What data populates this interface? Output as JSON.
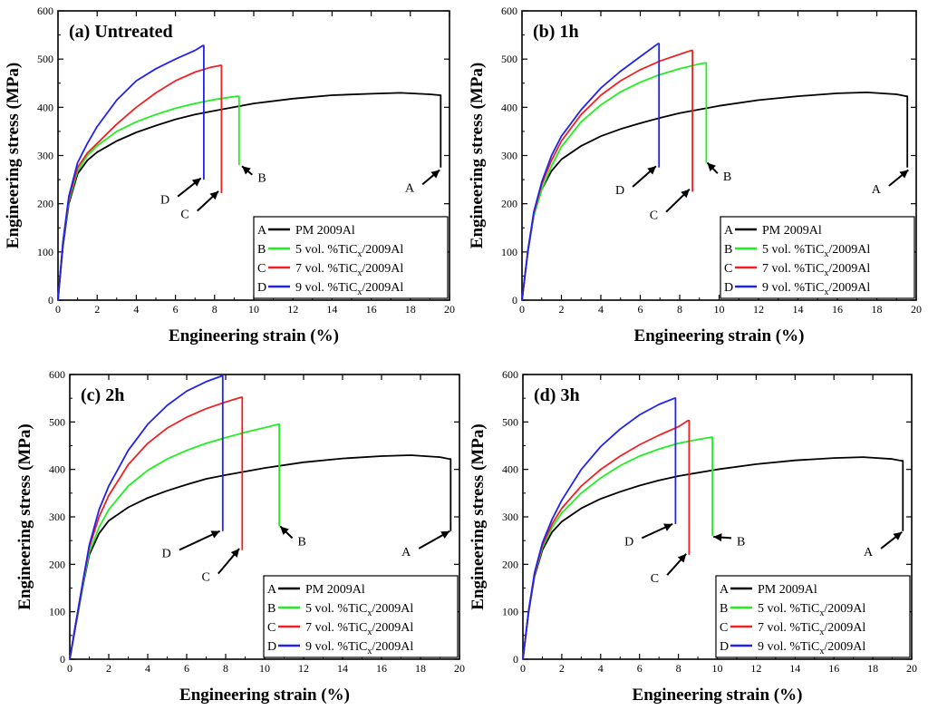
{
  "chart_data": [
    {
      "type": "line",
      "title": "(a) Untreated",
      "xlabel": "Engineering strain (%)",
      "ylabel": "Engineering stress (MPa)",
      "xlim": [
        0,
        20
      ],
      "ylim": [
        0,
        600
      ],
      "xticks": [
        0,
        2,
        4,
        6,
        8,
        10,
        12,
        14,
        16,
        18,
        20
      ],
      "yticks": [
        0,
        100,
        200,
        300,
        400,
        500,
        600
      ],
      "legend": "bottom-right",
      "series": [
        {
          "letter": "A",
          "name": "PM 2009Al",
          "color": "#000000",
          "x": [
            0,
            0.25,
            0.55,
            1.0,
            1.5,
            2.0,
            3,
            4,
            5,
            6,
            7,
            8,
            10,
            12,
            14,
            16,
            17.5,
            19,
            19.5
          ],
          "y": [
            0,
            110,
            200,
            262,
            290,
            307,
            330,
            348,
            362,
            375,
            385,
            393,
            408,
            418,
            425,
            428,
            430,
            427,
            425
          ],
          "fracture": [
            19.55,
            275
          ],
          "callout_point": [
            19.5,
            270
          ],
          "label_pos": [
            18.2,
            225
          ]
        },
        {
          "letter": "B",
          "name": "5 vol. %TiC",
          "sub": "x",
          "suffix": "/2009Al",
          "color": "#22ee22",
          "x": [
            0,
            0.25,
            0.55,
            1.0,
            1.5,
            2.0,
            3,
            4,
            5,
            6,
            7,
            8,
            8.8,
            9.2
          ],
          "y": [
            0,
            115,
            205,
            268,
            300,
            320,
            350,
            370,
            385,
            398,
            408,
            416,
            421,
            423
          ],
          "fracture": [
            9.25,
            280
          ],
          "callout_point": [
            9.4,
            278
          ],
          "label_pos": [
            10.2,
            245
          ]
        },
        {
          "letter": "C",
          "name": "7 vol. %TiC",
          "sub": "x",
          "suffix": "/2009Al",
          "color": "#ee2222",
          "x": [
            0,
            0.25,
            0.55,
            1.0,
            1.5,
            2.0,
            3,
            4,
            5,
            6,
            7,
            7.8,
            8.3
          ],
          "y": [
            0,
            118,
            210,
            275,
            305,
            325,
            365,
            400,
            430,
            455,
            473,
            483,
            487
          ],
          "fracture": [
            8.35,
            222
          ],
          "callout_point": [
            8.2,
            226
          ],
          "label_pos": [
            6.7,
            170
          ]
        },
        {
          "letter": "D",
          "name": "9 vol. %TiC",
          "sub": "x",
          "suffix": "/2009Al",
          "color": "#2222ee",
          "x": [
            0,
            0.25,
            0.55,
            1.0,
            1.5,
            2.0,
            3,
            4,
            5,
            6,
            7,
            7.4
          ],
          "y": [
            0,
            120,
            215,
            285,
            325,
            360,
            415,
            455,
            480,
            500,
            518,
            528
          ],
          "fracture": [
            7.45,
            250
          ],
          "callout_point": [
            7.3,
            253
          ],
          "label_pos": [
            5.7,
            200
          ]
        }
      ]
    },
    {
      "type": "line",
      "title": "(b) 1h",
      "xlabel": "Engineering strain (%)",
      "ylabel": "Engineering stress (MPa)",
      "xlim": [
        0,
        20
      ],
      "ylim": [
        0,
        600
      ],
      "xticks": [
        0,
        2,
        4,
        6,
        8,
        10,
        12,
        14,
        16,
        18,
        20
      ],
      "yticks": [
        0,
        100,
        200,
        300,
        400,
        500,
        600
      ],
      "legend": "bottom-right",
      "series": [
        {
          "letter": "A",
          "name": "PM 2009Al",
          "color": "#000000",
          "x": [
            0,
            0.3,
            0.6,
            1.0,
            1.5,
            2.0,
            3,
            4,
            5,
            6,
            7,
            8,
            10,
            12,
            14,
            16,
            17.5,
            19,
            19.5
          ],
          "y": [
            0,
            100,
            175,
            230,
            268,
            292,
            320,
            340,
            355,
            367,
            378,
            388,
            403,
            415,
            423,
            429,
            431,
            427,
            423
          ],
          "fracture": [
            19.55,
            275
          ],
          "callout_point": [
            19.6,
            270
          ],
          "label_pos": [
            18.2,
            222
          ]
        },
        {
          "letter": "B",
          "name": "5 vol. %TiC",
          "sub": "x",
          "suffix": "/2009Al",
          "color": "#22ee22",
          "x": [
            0,
            0.3,
            0.6,
            1.0,
            1.5,
            2.0,
            3,
            4,
            5,
            6,
            7,
            8,
            9,
            9.3
          ],
          "y": [
            0,
            100,
            175,
            230,
            278,
            318,
            370,
            405,
            432,
            452,
            468,
            480,
            490,
            492
          ],
          "fracture": [
            9.35,
            285
          ],
          "callout_point": [
            9.4,
            285
          ],
          "label_pos": [
            10.2,
            248
          ]
        },
        {
          "letter": "C",
          "name": "7 vol. %TiC",
          "sub": "x",
          "suffix": "/2009Al",
          "color": "#ee2222",
          "x": [
            0,
            0.3,
            0.6,
            1.0,
            1.5,
            2.0,
            3,
            4,
            5,
            6,
            7,
            8,
            8.6
          ],
          "y": [
            0,
            102,
            180,
            240,
            290,
            330,
            385,
            425,
            455,
            478,
            496,
            510,
            518
          ],
          "fracture": [
            8.65,
            225
          ],
          "callout_point": [
            8.5,
            230
          ],
          "label_pos": [
            6.9,
            168
          ]
        },
        {
          "letter": "D",
          "name": "9 vol. %TiC",
          "sub": "x",
          "suffix": "/2009Al",
          "color": "#2222ee",
          "x": [
            0,
            0.3,
            0.6,
            1.0,
            1.5,
            2.0,
            3,
            4,
            5,
            6,
            6.9
          ],
          "y": [
            0,
            103,
            183,
            245,
            300,
            340,
            395,
            440,
            475,
            505,
            532
          ],
          "fracture": [
            6.95,
            275
          ],
          "callout_point": [
            6.8,
            278
          ],
          "label_pos": [
            5.2,
            220
          ]
        }
      ]
    },
    {
      "type": "line",
      "title": "(c) 2h",
      "xlabel": "Engineering strain (%)",
      "ylabel": "Engineering stress (MPa)",
      "xlim": [
        0,
        20
      ],
      "ylim": [
        0,
        600
      ],
      "xticks": [
        0,
        2,
        4,
        6,
        8,
        10,
        12,
        14,
        16,
        18,
        20
      ],
      "yticks": [
        0,
        100,
        200,
        300,
        400,
        500,
        600
      ],
      "legend": "bottom-right",
      "series": [
        {
          "letter": "A",
          "name": "PM 2009Al",
          "color": "#000000",
          "x": [
            0,
            0.3,
            0.7,
            1.0,
            1.5,
            2.0,
            3,
            4,
            5,
            6,
            7,
            8,
            10,
            12,
            14,
            16,
            17.5,
            19,
            19.5
          ],
          "y": [
            0,
            70,
            160,
            220,
            265,
            292,
            320,
            340,
            355,
            368,
            380,
            388,
            403,
            415,
            423,
            428,
            430,
            426,
            422
          ],
          "fracture": [
            19.55,
            270
          ],
          "callout_point": [
            19.5,
            270
          ],
          "label_pos": [
            17.5,
            218
          ]
        },
        {
          "letter": "B",
          "name": "5 vol. %TiC",
          "sub": "x",
          "suffix": "/2009Al",
          "color": "#22ee22",
          "x": [
            0,
            0.3,
            0.7,
            1.0,
            1.5,
            2.0,
            3,
            4,
            5,
            6,
            7,
            8,
            9,
            10,
            10.7
          ],
          "y": [
            0,
            72,
            163,
            225,
            278,
            315,
            365,
            398,
            422,
            440,
            455,
            467,
            478,
            488,
            495
          ],
          "fracture": [
            10.75,
            280
          ],
          "callout_point": [
            10.8,
            280
          ],
          "label_pos": [
            11.7,
            240
          ]
        },
        {
          "letter": "C",
          "name": "7 vol. %TiC",
          "sub": "x",
          "suffix": "/2009Al",
          "color": "#ee2222",
          "x": [
            0,
            0.3,
            0.7,
            1.0,
            1.5,
            2.0,
            3,
            4,
            5,
            6,
            7,
            8,
            8.8
          ],
          "y": [
            0,
            74,
            168,
            235,
            300,
            345,
            410,
            455,
            487,
            510,
            528,
            542,
            552
          ],
          "fracture": [
            8.85,
            230
          ],
          "callout_point": [
            8.7,
            233
          ],
          "label_pos": [
            7.2,
            165
          ]
        },
        {
          "letter": "D",
          "name": "9 vol. %TiC",
          "sub": "x",
          "suffix": "/2009Al",
          "color": "#2222ee",
          "x": [
            0,
            0.3,
            0.7,
            1.0,
            1.5,
            2.0,
            3,
            4,
            5,
            6,
            7,
            7.8
          ],
          "y": [
            0,
            75,
            170,
            240,
            315,
            365,
            440,
            495,
            535,
            565,
            585,
            597
          ],
          "fracture": [
            7.85,
            270
          ],
          "callout_point": [
            7.7,
            270
          ],
          "label_pos": [
            5.2,
            215
          ]
        }
      ]
    },
    {
      "type": "line",
      "title": "(d) 3h",
      "xlabel": "Engineering strain (%)",
      "ylabel": "Engineering stress (MPa)",
      "xlim": [
        0,
        20
      ],
      "ylim": [
        0,
        600
      ],
      "xticks": [
        0,
        2,
        4,
        6,
        8,
        10,
        12,
        14,
        16,
        18,
        20
      ],
      "yticks": [
        0,
        100,
        200,
        300,
        400,
        500,
        600
      ],
      "legend": "bottom-right",
      "series": [
        {
          "letter": "A",
          "name": "PM 2009Al",
          "color": "#000000",
          "x": [
            0,
            0.3,
            0.6,
            1.0,
            1.5,
            2.0,
            3,
            4,
            5,
            6,
            7,
            8,
            10,
            12,
            14,
            16,
            17.5,
            19,
            19.5
          ],
          "y": [
            0,
            100,
            175,
            230,
            268,
            290,
            318,
            338,
            353,
            366,
            377,
            386,
            400,
            411,
            419,
            424,
            426,
            422,
            418
          ],
          "fracture": [
            19.55,
            270
          ],
          "callout_point": [
            19.5,
            268
          ],
          "label_pos": [
            18.0,
            218
          ]
        },
        {
          "letter": "B",
          "name": "5 vol. %TiC",
          "sub": "x",
          "suffix": "/2009Al",
          "color": "#22ee22",
          "x": [
            0,
            0.3,
            0.6,
            1.0,
            1.5,
            2.0,
            3,
            4,
            5,
            6,
            7,
            8,
            9,
            9.7
          ],
          "y": [
            0,
            102,
            178,
            235,
            278,
            308,
            350,
            382,
            408,
            428,
            443,
            455,
            463,
            468
          ],
          "fracture": [
            9.75,
            260
          ],
          "callout_point": [
            9.8,
            258
          ],
          "label_pos": [
            11.0,
            240
          ]
        },
        {
          "letter": "C",
          "name": "7 vol. %TiC",
          "sub": "x",
          "suffix": "/2009Al",
          "color": "#ee2222",
          "x": [
            0,
            0.3,
            0.6,
            1.0,
            1.5,
            2.0,
            3,
            4,
            5,
            6,
            7,
            8,
            8.5
          ],
          "y": [
            0,
            103,
            180,
            240,
            285,
            318,
            365,
            400,
            428,
            452,
            472,
            490,
            503
          ],
          "fracture": [
            8.55,
            220
          ],
          "callout_point": [
            8.4,
            222
          ],
          "label_pos": [
            7.0,
            162
          ]
        },
        {
          "letter": "D",
          "name": "9 vol. %TiC",
          "sub": "x",
          "suffix": "/2009Al",
          "color": "#2222ee",
          "x": [
            0,
            0.3,
            0.6,
            1.0,
            1.5,
            2.0,
            3,
            4,
            5,
            6,
            7,
            7.8
          ],
          "y": [
            0,
            104,
            183,
            245,
            295,
            335,
            400,
            448,
            485,
            515,
            537,
            550
          ],
          "fracture": [
            7.85,
            285
          ],
          "callout_point": [
            7.7,
            285
          ],
          "label_pos": [
            5.7,
            240
          ]
        }
      ]
    }
  ]
}
